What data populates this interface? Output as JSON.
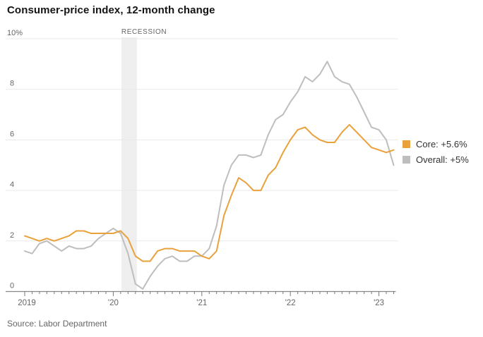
{
  "title": "Consumer-price index, 12-month change",
  "source": "Source: Labor Department",
  "legend": [
    {
      "label": "Core: +5.6%",
      "color": "#E9A13B"
    },
    {
      "label": "Overall: +5%",
      "color": "#BEBEBE"
    }
  ],
  "colors": {
    "core": "#E9A13B",
    "overall": "#BEBEBE",
    "grid": "#E9E9E9",
    "axis": "#888888",
    "tick": "#777777",
    "axis_label": "#666666",
    "recession_band": "#EFEFEF",
    "recession_label": "#666666"
  },
  "chart_data": {
    "type": "line",
    "title": "Consumer-price index, 12-month change",
    "x_start": "2019-01",
    "x_end": "2023-03",
    "x_unit": "month",
    "ylim": [
      0,
      10
    ],
    "grid": true,
    "legend_position": "right",
    "xticks": [
      {
        "label": "2019",
        "month": 0
      },
      {
        "label": "'20",
        "month": 12
      },
      {
        "label": "'21",
        "month": 24
      },
      {
        "label": "'22",
        "month": 36
      },
      {
        "label": "'23",
        "month": 48
      }
    ],
    "yticks": [
      {
        "label": "0",
        "value": 0
      },
      {
        "label": "2",
        "value": 2
      },
      {
        "label": "4",
        "value": 4
      },
      {
        "label": "6",
        "value": 6
      },
      {
        "label": "8",
        "value": 8
      },
      {
        "label": "10%",
        "value": 10
      }
    ],
    "recession_band": {
      "label": "RECESSION",
      "from_month": 13.1,
      "to_month": 15.2
    },
    "series": [
      {
        "name": "Overall",
        "color": "#BEBEBE",
        "latest_label": "Overall: +5%",
        "values": [
          1.6,
          1.5,
          1.9,
          2.0,
          1.8,
          1.6,
          1.8,
          1.7,
          1.7,
          1.8,
          2.1,
          2.3,
          2.5,
          2.3,
          1.5,
          0.3,
          0.1,
          0.6,
          1.0,
          1.3,
          1.4,
          1.2,
          1.2,
          1.4,
          1.4,
          1.7,
          2.6,
          4.2,
          5.0,
          5.4,
          5.4,
          5.3,
          5.4,
          6.2,
          6.8,
          7.0,
          7.5,
          7.9,
          8.5,
          8.3,
          8.6,
          9.1,
          8.5,
          8.3,
          8.2,
          7.7,
          7.1,
          6.5,
          6.4,
          6.0,
          5.0
        ]
      },
      {
        "name": "Core",
        "color": "#E9A13B",
        "latest_label": "Core: +5.6%",
        "values": [
          2.2,
          2.1,
          2.0,
          2.1,
          2.0,
          2.1,
          2.2,
          2.4,
          2.4,
          2.3,
          2.3,
          2.3,
          2.3,
          2.4,
          2.1,
          1.4,
          1.2,
          1.2,
          1.6,
          1.7,
          1.7,
          1.6,
          1.6,
          1.6,
          1.4,
          1.3,
          1.6,
          3.0,
          3.8,
          4.5,
          4.3,
          4.0,
          4.0,
          4.6,
          4.9,
          5.5,
          6.0,
          6.4,
          6.5,
          6.2,
          6.0,
          5.9,
          5.9,
          6.3,
          6.6,
          6.3,
          6.0,
          5.7,
          5.6,
          5.5,
          5.6
        ]
      }
    ]
  }
}
